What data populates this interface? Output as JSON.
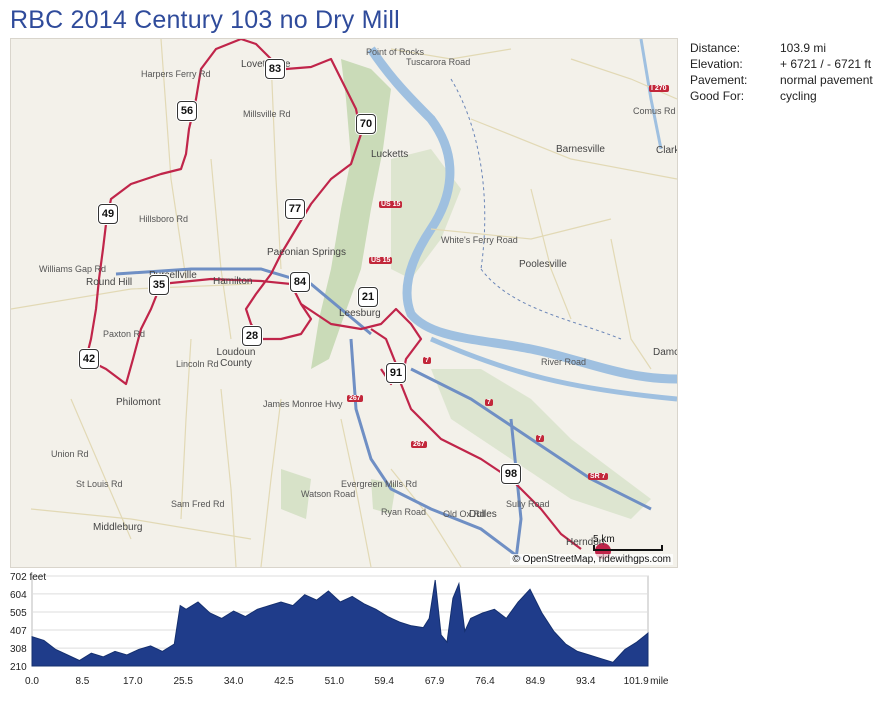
{
  "title": "RBC 2014 Century 103 no Dry Mill",
  "stats": [
    {
      "label": "Distance:",
      "value": "103.9 mi"
    },
    {
      "label": "Elevation:",
      "value": "+ 6721 / - 6721 ft"
    },
    {
      "label": "Pavement:",
      "value": "normal pavement"
    },
    {
      "label": "Good For:",
      "value": "cycling"
    }
  ],
  "map": {
    "credit": "© OpenStreetMap, ridewithgps.com",
    "scale_label": "5 km",
    "route_color": "#c0254a",
    "water_color": "#9fc0e0",
    "park_color": "#c6d9b3",
    "markers": [
      {
        "id": "83",
        "label": "83"
      },
      {
        "id": "56",
        "label": "56"
      },
      {
        "id": "70",
        "label": "70"
      },
      {
        "id": "49",
        "label": "49"
      },
      {
        "id": "77",
        "label": "77"
      },
      {
        "id": "35",
        "label": "35"
      },
      {
        "id": "84",
        "label": "84"
      },
      {
        "id": "21",
        "label": "21"
      },
      {
        "id": "28",
        "label": "28"
      },
      {
        "id": "42",
        "label": "42"
      },
      {
        "id": "91",
        "label": "91"
      },
      {
        "id": "98",
        "label": "98"
      }
    ],
    "places": {
      "point_of_rocks": "Point of Rocks",
      "tuscarora_road": "Tuscarora Road",
      "lovettsville": "Lovettsville",
      "barnesville": "Barnesville",
      "clarksburg": "Clark",
      "comus_rd": "Comus Rd",
      "taylorstown": "Taylorstown",
      "lucketts": "Lucketts",
      "whites_ferry": "White's Ferry Road",
      "poolesville": "Poolesville",
      "paeonian_springs": "Paeonian Springs",
      "round_hill": "Round Hill",
      "purcellville": "Purcellville",
      "hamilton": "Hamilton",
      "leesburg": "Leesburg",
      "loudoun_county": "Loudoun County",
      "philomont": "Philomont",
      "middleburg": "Middleburg",
      "dulles": "Dulles",
      "herndon": "Herndon",
      "river_road": "River Road",
      "damascus": "Damc",
      "ryan_road": "Ryan Road",
      "old_ox_rd": "Old Ox Rd",
      "sully_road": "Sully Road",
      "evergreen_mills": "Evergreen Mills Rd",
      "watson_road": "Watson Road",
      "sam_fred_rd": "Sam Fred Rd",
      "union_rd": "Union Rd",
      "st_louis_rd": "St Louis Rd",
      "williams_gap": "Williams Gap Rd",
      "harpers_ferry": "Harpers Ferry Rd",
      "hillsboro_rd": "Hillsboro Rd",
      "millsville_rd": "Millsville Rd",
      "lincoln_rd": "Lincoln Rd",
      "paxton_rd": "Paxton Rd",
      "james_monroe": "James Monroe Hwy",
      "belmont_ridge": "Belmont Ridge Rd",
      "route_15": "US 15",
      "route_7": "7",
      "route_267": "267",
      "route_28": "SR 7",
      "i270": "I 270"
    }
  },
  "chart_data": {
    "type": "area",
    "ylabel": "feet",
    "y_ticks": [
      "210",
      "308",
      "407",
      "505",
      "604",
      "702 feet"
    ],
    "ylim": [
      210,
      702
    ],
    "x_ticks": [
      "0.0",
      "8.5",
      "17.0",
      "25.5",
      "34.0",
      "42.5",
      "51.0",
      "59.4",
      "67.9",
      "76.4",
      "84.9",
      "93.4",
      "101.9"
    ],
    "x_unit": "mile",
    "xlim": [
      0,
      103.9
    ],
    "series": [
      {
        "fill": "#1f3c8a",
        "x": [
          0,
          2,
          4,
          6,
          8,
          10,
          12,
          14,
          16,
          18,
          20,
          22,
          24,
          25,
          26,
          28,
          30,
          32,
          34,
          36,
          38,
          40,
          42,
          44,
          46,
          48,
          50,
          52,
          54,
          56,
          58,
          60,
          62,
          64,
          66,
          67,
          68,
          69,
          70,
          71,
          72,
          73,
          74,
          76,
          78,
          80,
          82,
          84,
          86,
          88,
          90,
          92,
          94,
          96,
          98,
          100,
          102,
          103.9
        ],
        "y": [
          370,
          350,
          300,
          270,
          240,
          280,
          260,
          290,
          270,
          300,
          320,
          290,
          330,
          540,
          520,
          560,
          500,
          470,
          510,
          480,
          520,
          540,
          560,
          540,
          600,
          570,
          620,
          560,
          590,
          550,
          520,
          480,
          450,
          430,
          420,
          470,
          680,
          380,
          340,
          580,
          660,
          400,
          470,
          500,
          520,
          470,
          560,
          630,
          500,
          400,
          330,
          290,
          270,
          250,
          230,
          300,
          340,
          390
        ]
      }
    ]
  }
}
